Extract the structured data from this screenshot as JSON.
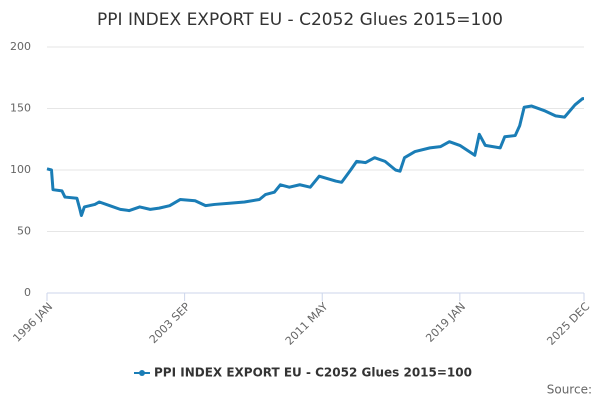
{
  "chart_data": {
    "type": "line",
    "title": "PPI INDEX EXPORT EU - C2052 Glues 2015=100",
    "source": "Source:",
    "x": [
      "1996 JAN",
      "1996 APR",
      "1996 MAY",
      "1996 NOV",
      "1997 JAN",
      "1997 SEP",
      "1997 NOV",
      "1997 DEC",
      "1998 FEB",
      "1998 SEP",
      "1998 DEC",
      "1999 JUL",
      "2000 FEB",
      "2000 AUG",
      "2001 MAR",
      "2001 OCT",
      "2002 APR",
      "2002 NOV",
      "2003 JUN",
      "2004 APR",
      "2004 NOV",
      "2005 MAY",
      "2006 MAR",
      "2007 JAN",
      "2007 NOV",
      "2008 MAR",
      "2008 SEP",
      "2009 JAN",
      "2009 JUL",
      "2010 FEB",
      "2010 SEP",
      "2011 MAR",
      "2012 FEB",
      "2012 JUN",
      "2012 DEC",
      "2013 APR",
      "2013 OCT",
      "2014 APR",
      "2014 NOV",
      "2015 JUN",
      "2015 SEP",
      "2015 DEC",
      "2016 JUL",
      "2017 MAY",
      "2017 DEC",
      "2018 JUN",
      "2019 JAN",
      "2019 NOV",
      "2020 FEB",
      "2020 JUN",
      "2021 APR",
      "2021 JUL",
      "2022 FEB",
      "2022 MAY",
      "2022 AUG",
      "2023 JAN",
      "2023 OCT",
      "2024 MAY",
      "2024 NOV",
      "2025 JUN",
      "2025 NOV",
      "2025 DEC"
    ],
    "series": [
      {
        "name": "PPI INDEX EXPORT EU - C2052 Glues 2015=100",
        "color": "#1a7db6",
        "values": [
          101,
          100,
          84,
          83,
          78,
          77,
          68,
          63,
          70,
          72,
          74,
          71,
          68,
          67,
          70,
          68,
          69,
          71,
          76,
          75,
          71,
          72,
          73,
          74,
          76,
          80,
          82,
          88,
          86,
          88,
          86,
          95,
          91,
          90,
          100,
          107,
          106,
          110,
          107,
          100,
          99,
          110,
          115,
          118,
          119,
          123,
          120,
          112,
          129,
          120,
          118,
          127,
          128,
          136,
          151,
          152,
          148,
          144,
          143,
          153,
          158,
          158
        ]
      }
    ],
    "xticks": [
      "1996 JAN",
      "2003 SEP",
      "2011 MAY",
      "2019 JAN",
      "2025 DEC"
    ],
    "ylim": [
      0,
      200
    ],
    "yticks": [
      0,
      50,
      100,
      150,
      200
    ],
    "grid": true
  }
}
